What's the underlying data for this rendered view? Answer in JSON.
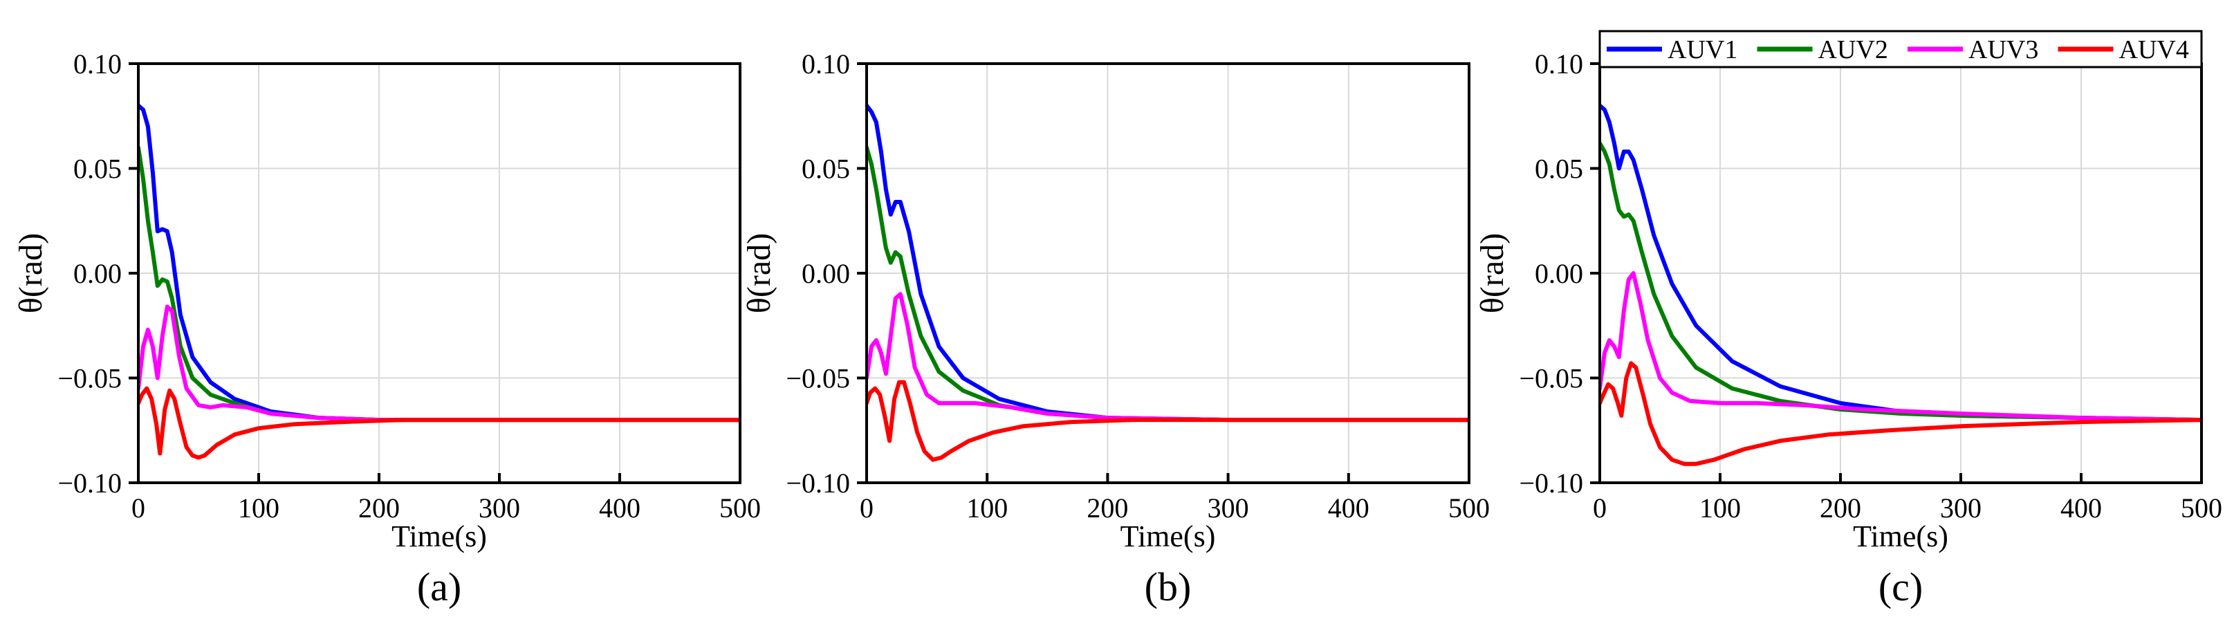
{
  "figure": {
    "line_width_note": "",
    "colors": {
      "AUV1": "#0000ff",
      "AUV2": "#007f00",
      "AUV3": "#ff00ff",
      "AUV4": "#ff0000",
      "grid": "#d9d9d9"
    }
  },
  "legend": {
    "placement": "top-right of panel (c)",
    "entries": [
      "AUV1",
      "AUV2",
      "AUV3",
      "AUV4"
    ]
  },
  "chart_data": [
    {
      "type": "line",
      "panel_label": "(a)",
      "xlabel": "Time(s)",
      "ylabel": "θ(rad)",
      "xlim": [
        0,
        500
      ],
      "ylim": [
        -0.1,
        0.1
      ],
      "xticks": [
        "0",
        "100",
        "200",
        "300",
        "400",
        "500"
      ],
      "yticks": [
        "0.10",
        "0.05",
        "0.00",
        "−0.05",
        "−0.10"
      ],
      "grid": true,
      "series": [
        {
          "name": "AUV1",
          "x": [
            0,
            4,
            8,
            12,
            16,
            20,
            24,
            28,
            35,
            45,
            60,
            80,
            110,
            150,
            200,
            300,
            400,
            500
          ],
          "y": [
            0.08,
            0.078,
            0.07,
            0.048,
            0.02,
            0.021,
            0.02,
            0.01,
            -0.02,
            -0.04,
            -0.052,
            -0.06,
            -0.066,
            -0.069,
            -0.07,
            -0.07,
            -0.07,
            -0.07
          ]
        },
        {
          "name": "AUV2",
          "x": [
            0,
            4,
            8,
            12,
            16,
            20,
            24,
            28,
            35,
            45,
            60,
            80,
            110,
            150,
            200,
            300,
            400,
            500
          ],
          "y": [
            0.06,
            0.045,
            0.025,
            0.01,
            -0.006,
            -0.003,
            -0.004,
            -0.012,
            -0.035,
            -0.05,
            -0.058,
            -0.062,
            -0.067,
            -0.069,
            -0.07,
            -0.07,
            -0.07,
            -0.07
          ]
        },
        {
          "name": "AUV3",
          "x": [
            0,
            4,
            8,
            12,
            16,
            20,
            24,
            28,
            34,
            40,
            50,
            60,
            70,
            90,
            110,
            150,
            200,
            300,
            500
          ],
          "y": [
            -0.055,
            -0.035,
            -0.027,
            -0.035,
            -0.05,
            -0.03,
            -0.016,
            -0.018,
            -0.04,
            -0.055,
            -0.063,
            -0.064,
            -0.063,
            -0.064,
            -0.067,
            -0.069,
            -0.07,
            -0.07,
            -0.07
          ]
        },
        {
          "name": "AUV4",
          "x": [
            0,
            3,
            7,
            11,
            15,
            18,
            22,
            26,
            30,
            35,
            40,
            45,
            50,
            55,
            65,
            80,
            100,
            130,
            170,
            220,
            300,
            500
          ],
          "y": [
            -0.062,
            -0.058,
            -0.055,
            -0.06,
            -0.072,
            -0.086,
            -0.065,
            -0.056,
            -0.06,
            -0.072,
            -0.083,
            -0.087,
            -0.088,
            -0.087,
            -0.082,
            -0.077,
            -0.074,
            -0.072,
            -0.071,
            -0.07,
            -0.07,
            -0.07
          ]
        }
      ]
    },
    {
      "type": "line",
      "panel_label": "(b)",
      "xlabel": "Time(s)",
      "ylabel": "θ(rad)",
      "xlim": [
        0,
        500
      ],
      "ylim": [
        -0.1,
        0.1
      ],
      "xticks": [
        "0",
        "100",
        "200",
        "300",
        "400",
        "500"
      ],
      "yticks": [
        "0.10",
        "0.05",
        "0.00",
        "−0.05",
        "−0.10"
      ],
      "grid": true,
      "series": [
        {
          "name": "AUV1",
          "x": [
            0,
            4,
            8,
            12,
            16,
            20,
            24,
            28,
            35,
            45,
            60,
            80,
            110,
            150,
            200,
            300,
            400,
            500
          ],
          "y": [
            0.08,
            0.077,
            0.072,
            0.058,
            0.04,
            0.028,
            0.034,
            0.034,
            0.02,
            -0.01,
            -0.035,
            -0.05,
            -0.06,
            -0.066,
            -0.069,
            -0.07,
            -0.07,
            -0.07
          ]
        },
        {
          "name": "AUV2",
          "x": [
            0,
            4,
            8,
            12,
            16,
            20,
            24,
            28,
            35,
            45,
            60,
            80,
            110,
            150,
            200,
            300,
            400,
            500
          ],
          "y": [
            0.06,
            0.052,
            0.04,
            0.026,
            0.012,
            0.005,
            0.01,
            0.008,
            -0.01,
            -0.03,
            -0.047,
            -0.056,
            -0.063,
            -0.067,
            -0.069,
            -0.07,
            -0.07,
            -0.07
          ]
        },
        {
          "name": "AUV3",
          "x": [
            0,
            4,
            8,
            12,
            16,
            20,
            24,
            28,
            34,
            40,
            50,
            60,
            70,
            90,
            120,
            150,
            200,
            300,
            500
          ],
          "y": [
            -0.05,
            -0.035,
            -0.032,
            -0.038,
            -0.048,
            -0.03,
            -0.012,
            -0.01,
            -0.025,
            -0.045,
            -0.058,
            -0.062,
            -0.062,
            -0.062,
            -0.064,
            -0.067,
            -0.069,
            -0.07,
            -0.07
          ]
        },
        {
          "name": "AUV4",
          "x": [
            0,
            3,
            7,
            11,
            15,
            19,
            23,
            27,
            31,
            36,
            42,
            48,
            55,
            62,
            70,
            85,
            105,
            130,
            170,
            220,
            300,
            500
          ],
          "y": [
            -0.062,
            -0.057,
            -0.055,
            -0.058,
            -0.068,
            -0.08,
            -0.06,
            -0.052,
            -0.052,
            -0.062,
            -0.076,
            -0.085,
            -0.089,
            -0.088,
            -0.085,
            -0.08,
            -0.076,
            -0.073,
            -0.071,
            -0.07,
            -0.07,
            -0.07
          ]
        }
      ]
    },
    {
      "type": "line",
      "panel_label": "(c)",
      "xlabel": "Time(s)",
      "ylabel": "θ(rad)",
      "xlim": [
        0,
        500
      ],
      "ylim": [
        -0.1,
        0.1
      ],
      "xticks": [
        "0",
        "100",
        "200",
        "300",
        "400",
        "500"
      ],
      "yticks": [
        "0.10",
        "0.05",
        "0.00",
        "−0.05",
        "−0.10"
      ],
      "grid": true,
      "series": [
        {
          "name": "AUV1",
          "x": [
            0,
            4,
            8,
            12,
            16,
            20,
            24,
            28,
            35,
            45,
            60,
            80,
            110,
            150,
            200,
            250,
            300,
            400,
            500
          ],
          "y": [
            0.08,
            0.078,
            0.072,
            0.062,
            0.05,
            0.058,
            0.058,
            0.054,
            0.04,
            0.018,
            -0.005,
            -0.025,
            -0.042,
            -0.054,
            -0.062,
            -0.066,
            -0.068,
            -0.069,
            -0.07
          ]
        },
        {
          "name": "AUV2",
          "x": [
            0,
            4,
            8,
            12,
            16,
            20,
            24,
            28,
            35,
            45,
            60,
            80,
            110,
            150,
            200,
            250,
            300,
            400,
            500
          ],
          "y": [
            0.062,
            0.058,
            0.052,
            0.04,
            0.03,
            0.027,
            0.028,
            0.025,
            0.01,
            -0.01,
            -0.03,
            -0.045,
            -0.055,
            -0.061,
            -0.065,
            -0.067,
            -0.068,
            -0.069,
            -0.07
          ]
        },
        {
          "name": "AUV3",
          "x": [
            0,
            4,
            8,
            12,
            16,
            20,
            24,
            28,
            34,
            40,
            50,
            60,
            75,
            100,
            130,
            170,
            220,
            300,
            400,
            500
          ],
          "y": [
            -0.055,
            -0.038,
            -0.032,
            -0.035,
            -0.04,
            -0.018,
            -0.003,
            0.0,
            -0.015,
            -0.032,
            -0.05,
            -0.057,
            -0.061,
            -0.062,
            -0.062,
            -0.063,
            -0.065,
            -0.067,
            -0.069,
            -0.07
          ]
        },
        {
          "name": "AUV4",
          "x": [
            0,
            3,
            7,
            11,
            15,
            18,
            22,
            26,
            30,
            36,
            42,
            50,
            60,
            70,
            80,
            95,
            120,
            150,
            190,
            240,
            300,
            400,
            500
          ],
          "y": [
            -0.062,
            -0.058,
            -0.053,
            -0.055,
            -0.062,
            -0.068,
            -0.05,
            -0.043,
            -0.045,
            -0.058,
            -0.072,
            -0.083,
            -0.089,
            -0.091,
            -0.091,
            -0.089,
            -0.084,
            -0.08,
            -0.077,
            -0.075,
            -0.073,
            -0.071,
            -0.07
          ]
        }
      ]
    }
  ]
}
